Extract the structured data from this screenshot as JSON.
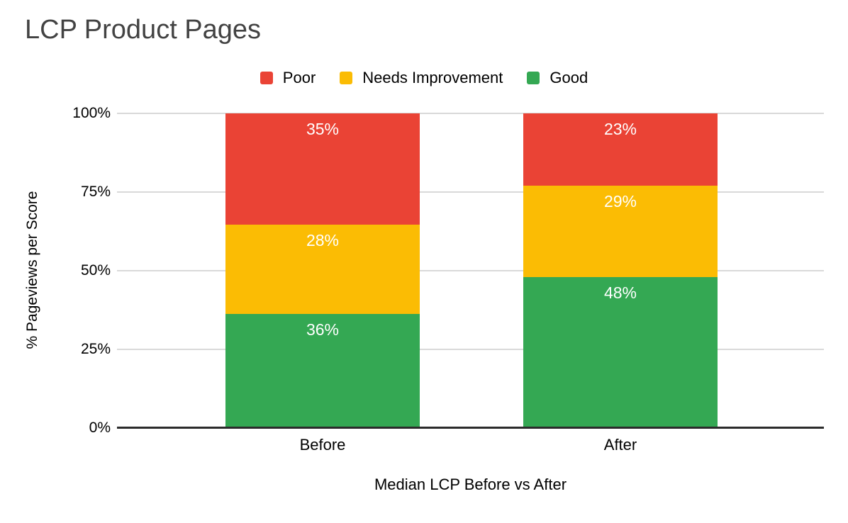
{
  "chart_data": {
    "type": "bar",
    "variant": "100-percent-stacked-column",
    "title": "LCP Product Pages",
    "xlabel": "Median LCP Before vs After",
    "ylabel": "% Pageviews per Score",
    "categories": [
      "Before",
      "After"
    ],
    "series": [
      {
        "name": "Poor",
        "color": "#EA4335",
        "values": [
          35,
          23
        ],
        "labels": [
          "35%",
          "23%"
        ]
      },
      {
        "name": "Needs Improvement",
        "color": "#FBBC04",
        "values": [
          28,
          29
        ],
        "labels": [
          "28%",
          "29%"
        ]
      },
      {
        "name": "Good",
        "color": "#34A853",
        "values": [
          36,
          48
        ],
        "labels": [
          "36%",
          "48%"
        ]
      }
    ],
    "stack_order_top_to_bottom": [
      "Poor",
      "Needs Improvement",
      "Good"
    ],
    "legend": [
      "Poor",
      "Needs Improvement",
      "Good"
    ],
    "legend_position": "top",
    "yticks": [
      {
        "label": "0%",
        "value": 0
      },
      {
        "label": "25%",
        "value": 25
      },
      {
        "label": "50%",
        "value": 50
      },
      {
        "label": "75%",
        "value": 75
      },
      {
        "label": "100%",
        "value": 100
      }
    ],
    "ylim": [
      0,
      100
    ],
    "grid": true,
    "colors": {
      "grid": "#d9d9d9",
      "axis_baseline": "#2b2b2b",
      "title_text": "#434343",
      "axis_text": "#000000",
      "data_label_text": "#ffffff",
      "background": "#ffffff"
    }
  }
}
